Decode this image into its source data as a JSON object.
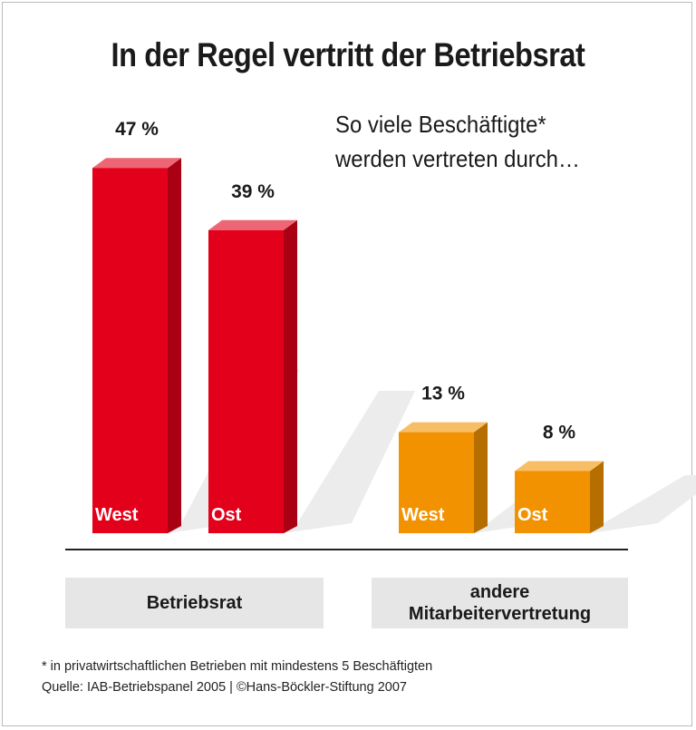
{
  "chart_data": {
    "type": "bar",
    "title": "In der Regel vertritt der Betriebsrat",
    "subtitle": "So viele Beschäftigte*\nwerden vertreten durch…",
    "groups": [
      {
        "label": "Betriebsrat",
        "color": "#e3001b",
        "bars": [
          {
            "category": "West",
            "value": 47,
            "value_label": "47 %"
          },
          {
            "category": "Ost",
            "value": 39,
            "value_label": "39 %"
          }
        ]
      },
      {
        "label": "andere\nMitarbeitervertretung",
        "color": "#f39200",
        "bars": [
          {
            "category": "West",
            "value": 13,
            "value_label": "13 %"
          },
          {
            "category": "Ost",
            "value": 8,
            "value_label": "8 %"
          }
        ]
      }
    ],
    "unit": "%",
    "footnote": "* in privatwirtschaftlichen Betrieben mit mindestens 5 Beschäftigten",
    "source": "Quelle: IAB-Betriebspanel 2005 | ©Hans-Böckler-Stiftung 2007"
  }
}
